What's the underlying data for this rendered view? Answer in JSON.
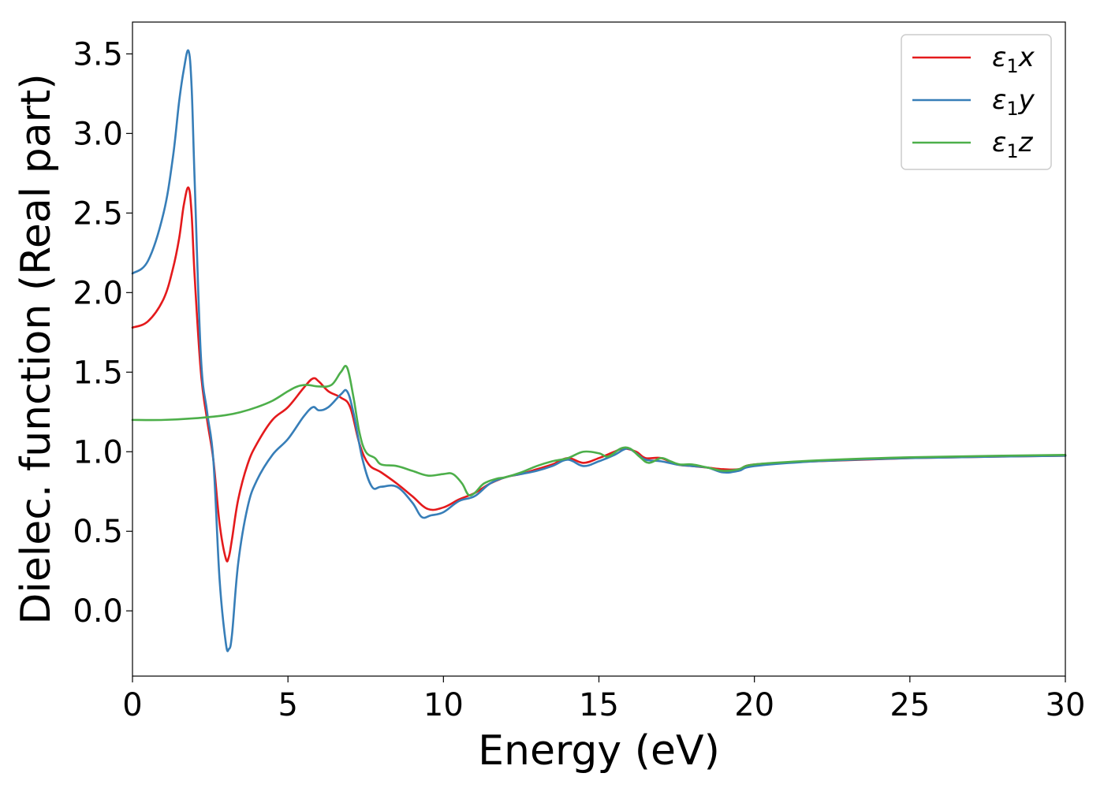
{
  "chart_data": {
    "type": "line",
    "title": "",
    "xlabel": "Energy (eV)",
    "ylabel": "Dielec. function (Real part)",
    "xlim": [
      0,
      30
    ],
    "ylim": [
      -0.41,
      3.7
    ],
    "xticks": [
      0,
      5,
      10,
      15,
      20,
      25,
      30
    ],
    "yticks": [
      0.0,
      0.5,
      1.0,
      1.5,
      2.0,
      2.5,
      3.0,
      3.5
    ],
    "xtick_labels": [
      "0",
      "5",
      "10",
      "15",
      "20",
      "25",
      "30"
    ],
    "ytick_labels": [
      "0.0",
      "0.5",
      "1.0",
      "1.5",
      "2.0",
      "2.5",
      "3.0",
      "3.5"
    ],
    "grid": false,
    "legend_position": "top-right",
    "series": [
      {
        "name": "ε₁x",
        "legend_main": "ε",
        "legend_sub": "1",
        "legend_tail": "x",
        "color": "#e41a1c",
        "x": [
          0,
          0.5,
          1.0,
          1.3,
          1.5,
          1.65,
          1.8,
          1.9,
          2.0,
          2.2,
          2.4,
          2.6,
          2.8,
          3.0,
          3.1,
          3.2,
          3.4,
          3.7,
          4.0,
          4.5,
          5.0,
          5.5,
          5.8,
          6.0,
          6.3,
          6.7,
          7.0,
          7.3,
          7.6,
          8.0,
          8.5,
          9.0,
          9.5,
          10.0,
          10.5,
          11.0,
          11.5,
          12.0,
          12.5,
          13.0,
          13.5,
          14.0,
          14.5,
          15.0,
          15.5,
          15.8,
          16.2,
          16.5,
          17.0,
          17.5,
          18.0,
          18.5,
          19.0,
          19.5,
          20.0,
          22.0,
          25.0,
          28.0,
          30.0
        ],
        "y": [
          1.78,
          1.82,
          1.96,
          2.15,
          2.34,
          2.55,
          2.66,
          2.5,
          2.1,
          1.5,
          1.2,
          0.95,
          0.55,
          0.33,
          0.34,
          0.45,
          0.7,
          0.92,
          1.05,
          1.2,
          1.28,
          1.4,
          1.46,
          1.44,
          1.38,
          1.34,
          1.28,
          1.05,
          0.92,
          0.87,
          0.8,
          0.72,
          0.64,
          0.65,
          0.7,
          0.74,
          0.8,
          0.84,
          0.86,
          0.89,
          0.92,
          0.96,
          0.93,
          0.96,
          1.0,
          1.02,
          1.0,
          0.96,
          0.96,
          0.92,
          0.91,
          0.9,
          0.89,
          0.89,
          0.92,
          0.94,
          0.96,
          0.97,
          0.975
        ]
      },
      {
        "name": "ε₁y",
        "legend_main": "ε",
        "legend_sub": "1",
        "legend_tail": "y",
        "color": "#377eb8",
        "x": [
          0,
          0.5,
          1.0,
          1.3,
          1.5,
          1.65,
          1.8,
          1.9,
          2.0,
          2.2,
          2.4,
          2.6,
          2.8,
          3.0,
          3.1,
          3.2,
          3.4,
          3.7,
          4.0,
          4.5,
          5.0,
          5.5,
          5.8,
          6.0,
          6.3,
          6.7,
          6.9,
          7.1,
          7.4,
          7.7,
          8.0,
          8.5,
          9.0,
          9.3,
          9.6,
          10.0,
          10.5,
          11.0,
          11.5,
          12.0,
          12.5,
          13.0,
          13.5,
          14.0,
          14.5,
          15.0,
          15.5,
          15.9,
          16.2,
          16.5,
          17.0,
          17.5,
          18.0,
          18.5,
          19.0,
          19.5,
          20.0,
          22.0,
          25.0,
          28.0,
          30.0
        ],
        "y": [
          2.12,
          2.2,
          2.5,
          2.85,
          3.2,
          3.4,
          3.52,
          3.3,
          2.7,
          1.6,
          1.25,
          0.95,
          0.2,
          -0.2,
          -0.24,
          -0.15,
          0.3,
          0.65,
          0.82,
          0.98,
          1.08,
          1.22,
          1.28,
          1.26,
          1.28,
          1.36,
          1.38,
          1.25,
          0.95,
          0.78,
          0.78,
          0.78,
          0.68,
          0.59,
          0.6,
          0.62,
          0.69,
          0.72,
          0.8,
          0.84,
          0.86,
          0.88,
          0.91,
          0.95,
          0.91,
          0.94,
          0.98,
          1.02,
          0.99,
          0.95,
          0.94,
          0.92,
          0.91,
          0.9,
          0.87,
          0.88,
          0.91,
          0.94,
          0.96,
          0.97,
          0.975
        ]
      },
      {
        "name": "ε₁z",
        "legend_main": "ε",
        "legend_sub": "1",
        "legend_tail": "z",
        "color": "#4daf4a",
        "x": [
          0,
          1.0,
          2.0,
          3.0,
          3.5,
          4.0,
          4.5,
          5.0,
          5.3,
          5.6,
          6.0,
          6.4,
          6.7,
          6.9,
          7.1,
          7.3,
          7.5,
          7.8,
          8.0,
          8.5,
          9.0,
          9.5,
          10.0,
          10.3,
          10.6,
          10.8,
          11.0,
          11.3,
          11.7,
          12.0,
          12.5,
          13.0,
          13.5,
          14.0,
          14.5,
          15.0,
          15.3,
          15.7,
          16.0,
          16.3,
          16.6,
          17.0,
          17.3,
          17.6,
          18.0,
          18.5,
          19.0,
          19.5,
          20.0,
          22.0,
          25.0,
          28.0,
          30.0
        ],
        "y": [
          1.2,
          1.2,
          1.21,
          1.23,
          1.25,
          1.28,
          1.32,
          1.38,
          1.41,
          1.42,
          1.41,
          1.42,
          1.5,
          1.53,
          1.35,
          1.12,
          1.0,
          0.96,
          0.92,
          0.91,
          0.88,
          0.85,
          0.86,
          0.86,
          0.8,
          0.73,
          0.74,
          0.8,
          0.83,
          0.84,
          0.87,
          0.91,
          0.94,
          0.96,
          1.0,
          0.99,
          0.97,
          1.02,
          1.02,
          0.97,
          0.93,
          0.96,
          0.94,
          0.92,
          0.92,
          0.9,
          0.88,
          0.89,
          0.92,
          0.945,
          0.965,
          0.975,
          0.98
        ]
      }
    ]
  }
}
